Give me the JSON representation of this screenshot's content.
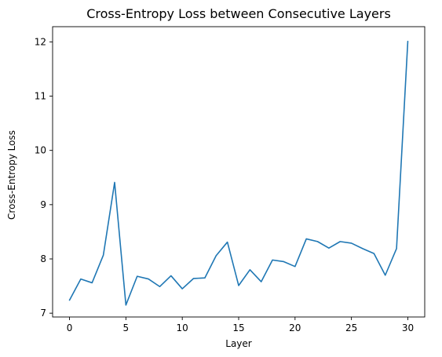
{
  "chart_data": {
    "type": "line",
    "title": "Cross-Entropy Loss between Consecutive Layers",
    "xlabel": "Layer",
    "ylabel": "Cross-Entropy Loss",
    "xlim": [
      -1.5,
      31.5
    ],
    "ylim": [
      6.93,
      12.28
    ],
    "xticks": [
      0,
      5,
      10,
      15,
      20,
      25,
      30
    ],
    "yticks": [
      7,
      8,
      9,
      10,
      11,
      12
    ],
    "grid": false,
    "legend": "none",
    "line_color": "#1f77b4",
    "series": [
      {
        "x": [
          0,
          1,
          2,
          3,
          4,
          5,
          6,
          7,
          8,
          9,
          10,
          11,
          12,
          13,
          14,
          15,
          16,
          17,
          18,
          19,
          20,
          21,
          22,
          23,
          24,
          25,
          26,
          27,
          28,
          29,
          30
        ],
        "values": [
          7.24,
          7.63,
          7.56,
          8.07,
          9.41,
          7.15,
          7.68,
          7.63,
          7.49,
          7.69,
          7.45,
          7.64,
          7.65,
          8.06,
          8.31,
          7.51,
          7.8,
          7.58,
          7.98,
          7.95,
          7.86,
          8.37,
          8.32,
          8.2,
          8.32,
          8.29,
          8.19,
          8.1,
          7.7,
          8.19,
          12.01
        ]
      }
    ]
  }
}
